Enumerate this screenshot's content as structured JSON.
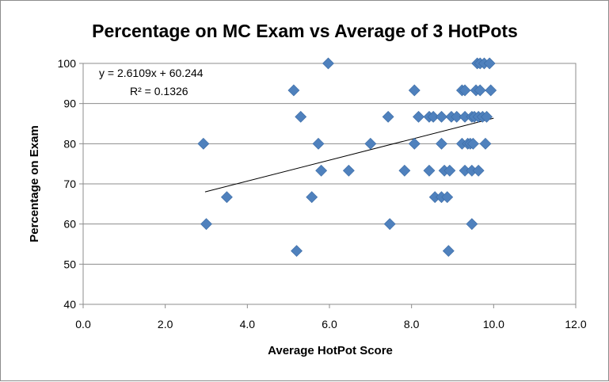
{
  "chart_data": {
    "type": "scatter",
    "title": "Percentage on MC Exam vs Average of 3 HotPots",
    "xlabel": "Average HotPot Score",
    "ylabel": "Percentage on Exam",
    "xlim": [
      0,
      12
    ],
    "ylim": [
      40,
      100
    ],
    "x_ticks": [
      "0.0",
      "2.0",
      "4.0",
      "6.0",
      "8.0",
      "10.0",
      "12.0"
    ],
    "y_ticks": [
      "40",
      "50",
      "60",
      "70",
      "80",
      "90",
      "100"
    ],
    "grid": "horizontal",
    "legend": "none",
    "marker": "diamond",
    "marker_color": "#4f81bd",
    "trendline": {
      "equation": "y = 2.6109x + 60.244",
      "r_squared": "R² = 0.1326",
      "slope": 2.6109,
      "intercept": 60.244,
      "x_range": [
        2.97,
        10.0
      ]
    },
    "points": [
      {
        "x": 2.93,
        "y": 80
      },
      {
        "x": 3.0,
        "y": 60
      },
      {
        "x": 3.5,
        "y": 66.7
      },
      {
        "x": 5.13,
        "y": 93.3
      },
      {
        "x": 5.2,
        "y": 53.3
      },
      {
        "x": 5.3,
        "y": 86.7
      },
      {
        "x": 5.57,
        "y": 66.7
      },
      {
        "x": 5.73,
        "y": 80
      },
      {
        "x": 5.8,
        "y": 73.3
      },
      {
        "x": 5.97,
        "y": 100
      },
      {
        "x": 6.47,
        "y": 73.3
      },
      {
        "x": 7.0,
        "y": 80
      },
      {
        "x": 7.43,
        "y": 86.7
      },
      {
        "x": 7.47,
        "y": 60
      },
      {
        "x": 7.83,
        "y": 73.3
      },
      {
        "x": 8.07,
        "y": 93.3
      },
      {
        "x": 8.07,
        "y": 80
      },
      {
        "x": 8.17,
        "y": 86.7
      },
      {
        "x": 8.43,
        "y": 86.7
      },
      {
        "x": 8.43,
        "y": 73.3
      },
      {
        "x": 8.53,
        "y": 86.7
      },
      {
        "x": 8.57,
        "y": 66.7
      },
      {
        "x": 8.73,
        "y": 86.7
      },
      {
        "x": 8.73,
        "y": 80
      },
      {
        "x": 8.73,
        "y": 66.7
      },
      {
        "x": 8.8,
        "y": 73.3
      },
      {
        "x": 8.87,
        "y": 66.7
      },
      {
        "x": 8.9,
        "y": 53.3
      },
      {
        "x": 8.93,
        "y": 73.3
      },
      {
        "x": 8.97,
        "y": 86.7
      },
      {
        "x": 9.1,
        "y": 86.7
      },
      {
        "x": 9.23,
        "y": 93.3
      },
      {
        "x": 9.23,
        "y": 80
      },
      {
        "x": 9.3,
        "y": 93.3
      },
      {
        "x": 9.3,
        "y": 86.7
      },
      {
        "x": 9.3,
        "y": 73.3
      },
      {
        "x": 9.37,
        "y": 80
      },
      {
        "x": 9.43,
        "y": 80
      },
      {
        "x": 9.47,
        "y": 86.7
      },
      {
        "x": 9.47,
        "y": 73.3
      },
      {
        "x": 9.47,
        "y": 60
      },
      {
        "x": 9.5,
        "y": 80
      },
      {
        "x": 9.53,
        "y": 86.7
      },
      {
        "x": 9.57,
        "y": 93.3
      },
      {
        "x": 9.6,
        "y": 100
      },
      {
        "x": 9.63,
        "y": 86.7
      },
      {
        "x": 9.63,
        "y": 73.3
      },
      {
        "x": 9.67,
        "y": 100
      },
      {
        "x": 9.67,
        "y": 93.3
      },
      {
        "x": 9.73,
        "y": 86.7
      },
      {
        "x": 9.77,
        "y": 100
      },
      {
        "x": 9.8,
        "y": 80
      },
      {
        "x": 9.83,
        "y": 86.7
      },
      {
        "x": 9.9,
        "y": 100
      },
      {
        "x": 9.93,
        "y": 93.3
      }
    ]
  }
}
